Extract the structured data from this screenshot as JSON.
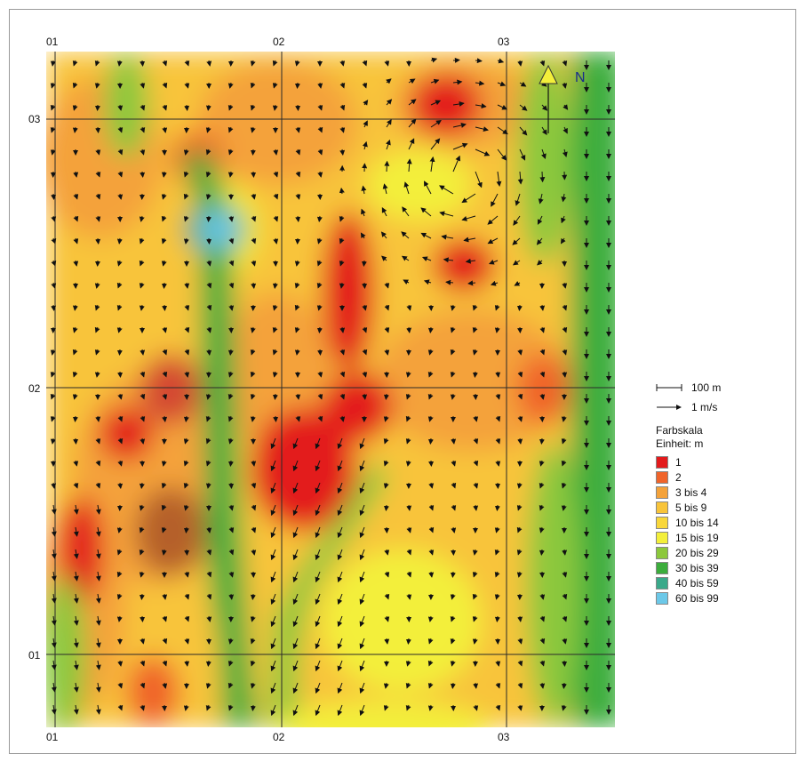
{
  "coordinates": {
    "top": [
      "01",
      "02",
      "03"
    ],
    "bottom": [
      "01",
      "02",
      "03"
    ],
    "left": [
      "03",
      "02",
      "01"
    ]
  },
  "north_label": "N",
  "legend": {
    "distance_scale": "100 m",
    "speed_scale": "1 m/s",
    "title": "Farbskala",
    "unit": "Einheit: m",
    "classes": [
      {
        "label": "1",
        "color": "#e31a1c"
      },
      {
        "label": "2",
        "color": "#f0642a"
      },
      {
        "label": "3 bis 4",
        "color": "#f4a23a"
      },
      {
        "label": "5 bis 9",
        "color": "#f8c43a"
      },
      {
        "label": "10 bis 14",
        "color": "#f9d73a"
      },
      {
        "label": "15 bis 19",
        "color": "#f3ef3a"
      },
      {
        "label": "20 bis 29",
        "color": "#8cc83c"
      },
      {
        "label": "30 bis 39",
        "color": "#3cad3c"
      },
      {
        "label": "40 bis 59",
        "color": "#3aa98a"
      },
      {
        "label": "60 bis 99",
        "color": "#6cc8e8"
      }
    ]
  }
}
